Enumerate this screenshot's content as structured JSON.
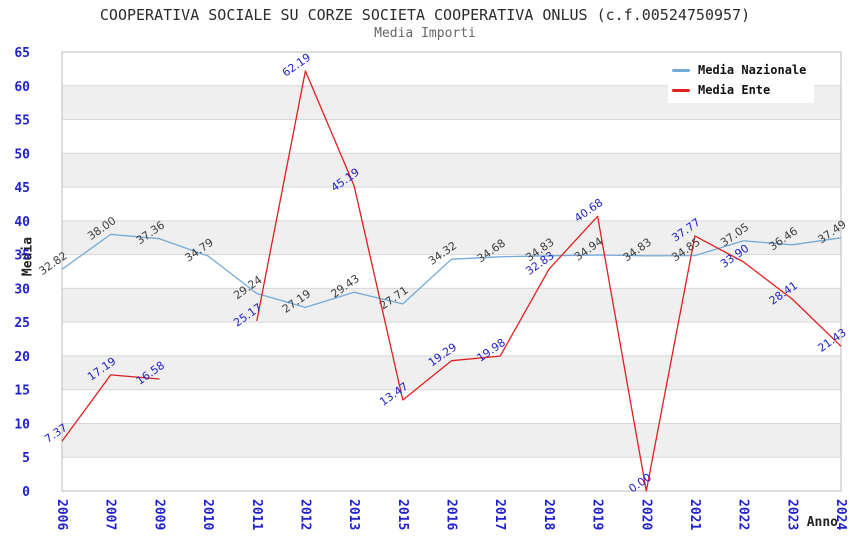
{
  "header": {
    "title": "COOPERATIVA SOCIALE SU CORZE SOCIETA COOPERATIVA ONLUS (c.f.00524750957)",
    "subtitle": "Media Importi"
  },
  "axes": {
    "y_label": "Media",
    "x_label": "Anno",
    "y_ticks": [
      0,
      5,
      10,
      15,
      20,
      25,
      30,
      35,
      40,
      45,
      50,
      55,
      60,
      65
    ],
    "tick_color": "#2222cc"
  },
  "legend": {
    "items": [
      {
        "label": "Media Nazionale",
        "color": "#74aad8"
      },
      {
        "label": "Media Ente",
        "color": "#e02020"
      }
    ]
  },
  "chart_data": {
    "type": "line",
    "title": "COOPERATIVA SOCIALE SU CORZE SOCIETA COOPERATIVA ONLUS (c.f.00524750957)",
    "subtitle": "Media Importi",
    "xlabel": "Anno",
    "ylabel": "Media",
    "ylim": [
      0,
      65
    ],
    "ytick_step": 5,
    "grid": true,
    "band_colors": [
      "#ffffff",
      "#efefef"
    ],
    "legend_position": "top-right",
    "categories": [
      "2006",
      "2007",
      "2009",
      "2010",
      "2011",
      "2012",
      "2013",
      "2015",
      "2016",
      "2017",
      "2018",
      "2019",
      "2020",
      "2021",
      "2022",
      "2023",
      "2024"
    ],
    "series": [
      {
        "name": "Media Nazionale",
        "color": "#74aad8",
        "label_color": "#3d3d3d",
        "values": [
          32.82,
          38.0,
          37.36,
          34.79,
          29.24,
          27.19,
          29.43,
          27.71,
          34.32,
          34.68,
          34.83,
          34.94,
          34.83,
          34.85,
          37.05,
          36.46,
          37.49
        ],
        "labels": [
          "32.82",
          "38.00",
          "37.36",
          "34.79",
          "29.24",
          "27.19",
          "29.43",
          "27.71",
          "34.32",
          "34.68",
          "34.83",
          "34.94",
          "34.83",
          "34.85",
          "37.05",
          "36.46",
          "37.49"
        ]
      },
      {
        "name": "Media Ente",
        "color": "#e02020",
        "label_color": "#2222cc",
        "values": [
          7.37,
          17.19,
          16.58,
          null,
          25.17,
          62.19,
          45.19,
          13.47,
          19.29,
          19.98,
          32.83,
          40.68,
          0.0,
          37.77,
          33.9,
          28.41,
          21.43
        ],
        "labels": [
          "7.37",
          "17.19",
          "16.58",
          null,
          "25.17",
          "62.19",
          "45.19",
          "13.47",
          "19.29",
          "19.98",
          "32.83",
          "40.68",
          "0.00",
          "37.77",
          "33.90",
          "28.41",
          "21.43"
        ]
      }
    ]
  }
}
